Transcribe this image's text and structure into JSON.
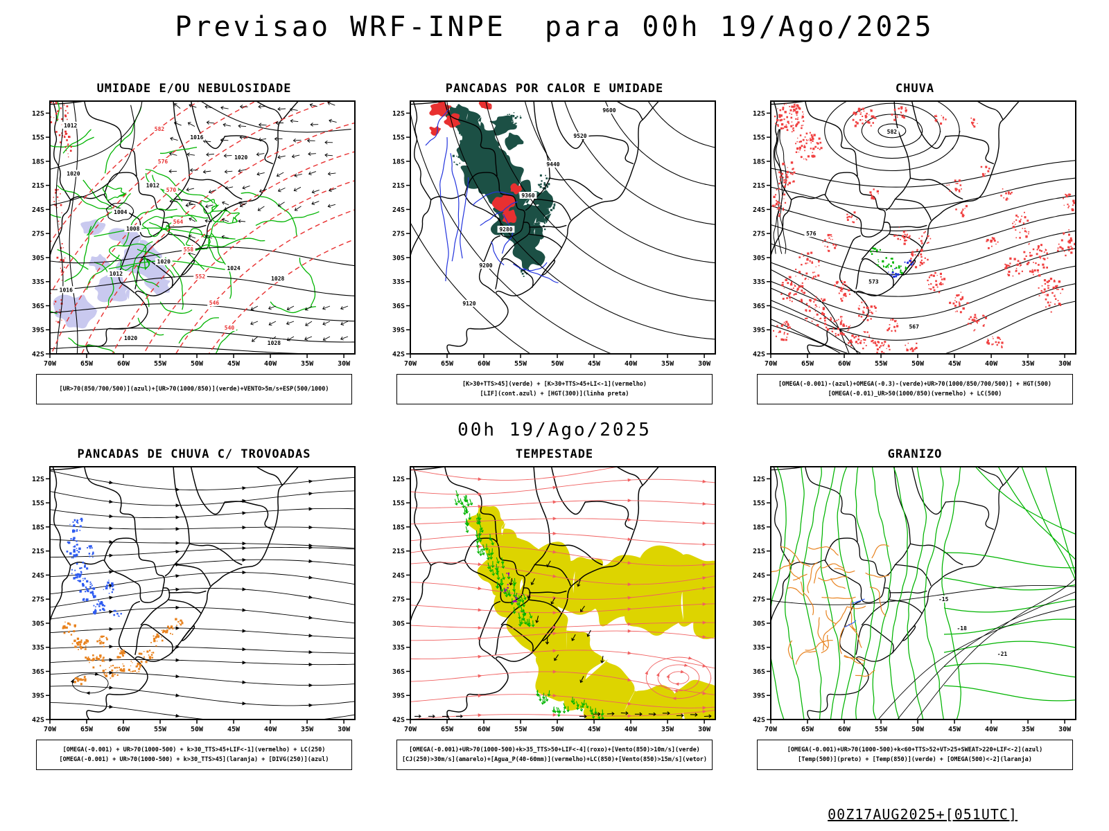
{
  "header": {
    "title": "Previsao WRF-INPE  para 00h 19/Ago/2025"
  },
  "middle_caption": "00h 19/Ago/2025",
  "footer": {
    "stamp": "00Z17AUG2025+[051UTC]"
  },
  "axes": {
    "lat_ticks": [
      "12S",
      "15S",
      "18S",
      "21S",
      "24S",
      "27S",
      "30S",
      "33S",
      "36S",
      "39S",
      "42S"
    ],
    "lon_ticks": [
      "70W",
      "65W",
      "60W",
      "55W",
      "50W",
      "45W",
      "40W",
      "35W",
      "30W"
    ]
  },
  "colors": {
    "green": "#00b400",
    "dark_fill": "#1c5045",
    "red": "#e83030",
    "red_patch": "#f04040",
    "blue": "#2233dd",
    "blue_speckle": "#2e5bf0",
    "lavender": "#c9c9ef",
    "yellow": "#ddd400",
    "orange": "#e8821e",
    "pink_stream": "#f06060",
    "purple": "#9900bb"
  },
  "panels": [
    {
      "id": "umidade",
      "title": "UMIDADE E/OU NEBULOSIDADE",
      "legend": [
        "[UR>70(850/700/500)](azul)+[UR>70(1000/850)](verde)+VENTO>5m/s+ESP(500/1000)"
      ],
      "contour_labels": {
        "pressure": [
          "1004",
          "1008",
          "1012",
          "1016",
          "1020",
          "1024",
          "1028"
        ],
        "thickness": [
          "540",
          "546",
          "552",
          "558",
          "564",
          "570",
          "576",
          "582"
        ]
      }
    },
    {
      "id": "pancadas-calor",
      "title": "PANCADAS POR CALOR E UMIDADE",
      "legend": [
        "[K>30+TTS>45](verde) + [K>30+TTS>45+LI<-1](vermelho)",
        "[LIF](cont.azul) + [HGT(300)](linha preta)"
      ],
      "contour_labels": {
        "height": [
          "9120",
          "9200",
          "9280",
          "9360",
          "9440",
          "9520",
          "9600"
        ]
      }
    },
    {
      "id": "chuva",
      "title": "CHUVA",
      "legend": [
        "[OMEGA(-0.001)-(azul)+OMEGA(-0.3)-(verde)+UR>70(1000/850/700/500)] + HGT(500)",
        "[OMEGA(-0.01)_UR>50(1000/850)(vermelho) + LC(500)"
      ],
      "contour_labels": {
        "height": [
          "567",
          "573",
          "576",
          "582"
        ]
      }
    },
    {
      "id": "trovoadas",
      "title": "PANCADAS DE CHUVA C/ TROVOADAS",
      "legend": [
        "[OMEGA(-0.001) + UR>70(1000-500) + k>30_TTS>45+LIF<-1](vermelho) + LC(250)",
        "[OMEGA(-0.001) + UR>70(1000-500) + k>30_TTS>45](laranja) + [DIVG(250)](azul)"
      ],
      "contour_labels": {}
    },
    {
      "id": "tempestade",
      "title": "TEMPESTADE",
      "legend": [
        "[OMEGA(-0.001)+UR>70(1000-500)+k>35_TTS>50+LIF<-4](roxo)+[Vento(850)>10m/s](verde)",
        "[CJ(250)>30m/s](amarelo)+[Agua_P(40-60mm)](vermelho)+LC(850)+[Vento(850)>15m/s](vetor)"
      ],
      "contour_labels": {}
    },
    {
      "id": "granizo",
      "title": "GRANIZO",
      "legend": [
        "[OMEGA(-0.001)+UR>70(1000-500)+k<60+TTS>52+VT>25+SWEAT>220+LIF<-2](azul)",
        "[Temp(500)](preto) + [Temp(850)](verde) + [OMEGA(500)<-2](laranja)"
      ],
      "contour_labels": {
        "temperature": [
          "-15",
          "-18",
          "-21"
        ]
      }
    }
  ]
}
